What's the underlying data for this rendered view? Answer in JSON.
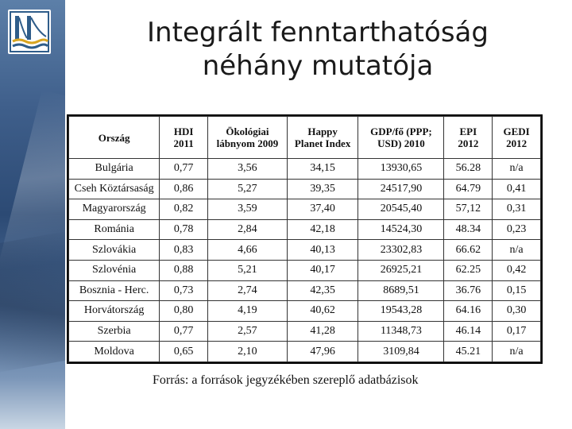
{
  "title_line1": "Integrált fenntarthatóság",
  "title_line2": "néhány mutatója",
  "logo_icon": "bridge-logo-icon",
  "table": {
    "headers": [
      [
        "Ország",
        ""
      ],
      [
        "HDI",
        "2011"
      ],
      [
        "Ökológiai",
        "lábnyom 2009"
      ],
      [
        "Happy",
        "Planet Index"
      ],
      [
        "GDP/fő (PPP;",
        "USD) 2010"
      ],
      [
        "EPI",
        "2012"
      ],
      [
        "GEDI",
        "2012"
      ]
    ],
    "rows": [
      [
        "Bulgária",
        "0,77",
        "3,56",
        "34,15",
        "13930,65",
        "56.28",
        "n/a"
      ],
      [
        "Cseh Köztársaság",
        "0,86",
        "5,27",
        "39,35",
        "24517,90",
        "64.79",
        "0,41"
      ],
      [
        "Magyarország",
        "0,82",
        "3,59",
        "37,40",
        "20545,40",
        "57,12",
        "0,31"
      ],
      [
        "Románia",
        "0,78",
        "2,84",
        "42,18",
        "14524,30",
        "48.34",
        "0,23"
      ],
      [
        "Szlovákia",
        "0,83",
        "4,66",
        "40,13",
        "23302,83",
        "66.62",
        "n/a"
      ],
      [
        "Szlovénia",
        "0,88",
        "5,21",
        "40,17",
        "26925,21",
        "62.25",
        "0,42"
      ],
      [
        "Bosznia - Herc.",
        "0,73",
        "2,74",
        "42,35",
        "8689,51",
        "36.76",
        "0,15"
      ],
      [
        "Horvátország",
        "0,80",
        "4,19",
        "40,62",
        "19543,28",
        "64.16",
        "0,30"
      ],
      [
        "Szerbia",
        "0,77",
        "2,57",
        "41,28",
        "11348,73",
        "46.14",
        "0,17"
      ],
      [
        "Moldova",
        "0,65",
        "2,10",
        "47,96",
        "3109,84",
        "45.21",
        "n/a"
      ]
    ]
  },
  "source": "Forrás: a források jegyzékében szereplő adatbázisok"
}
